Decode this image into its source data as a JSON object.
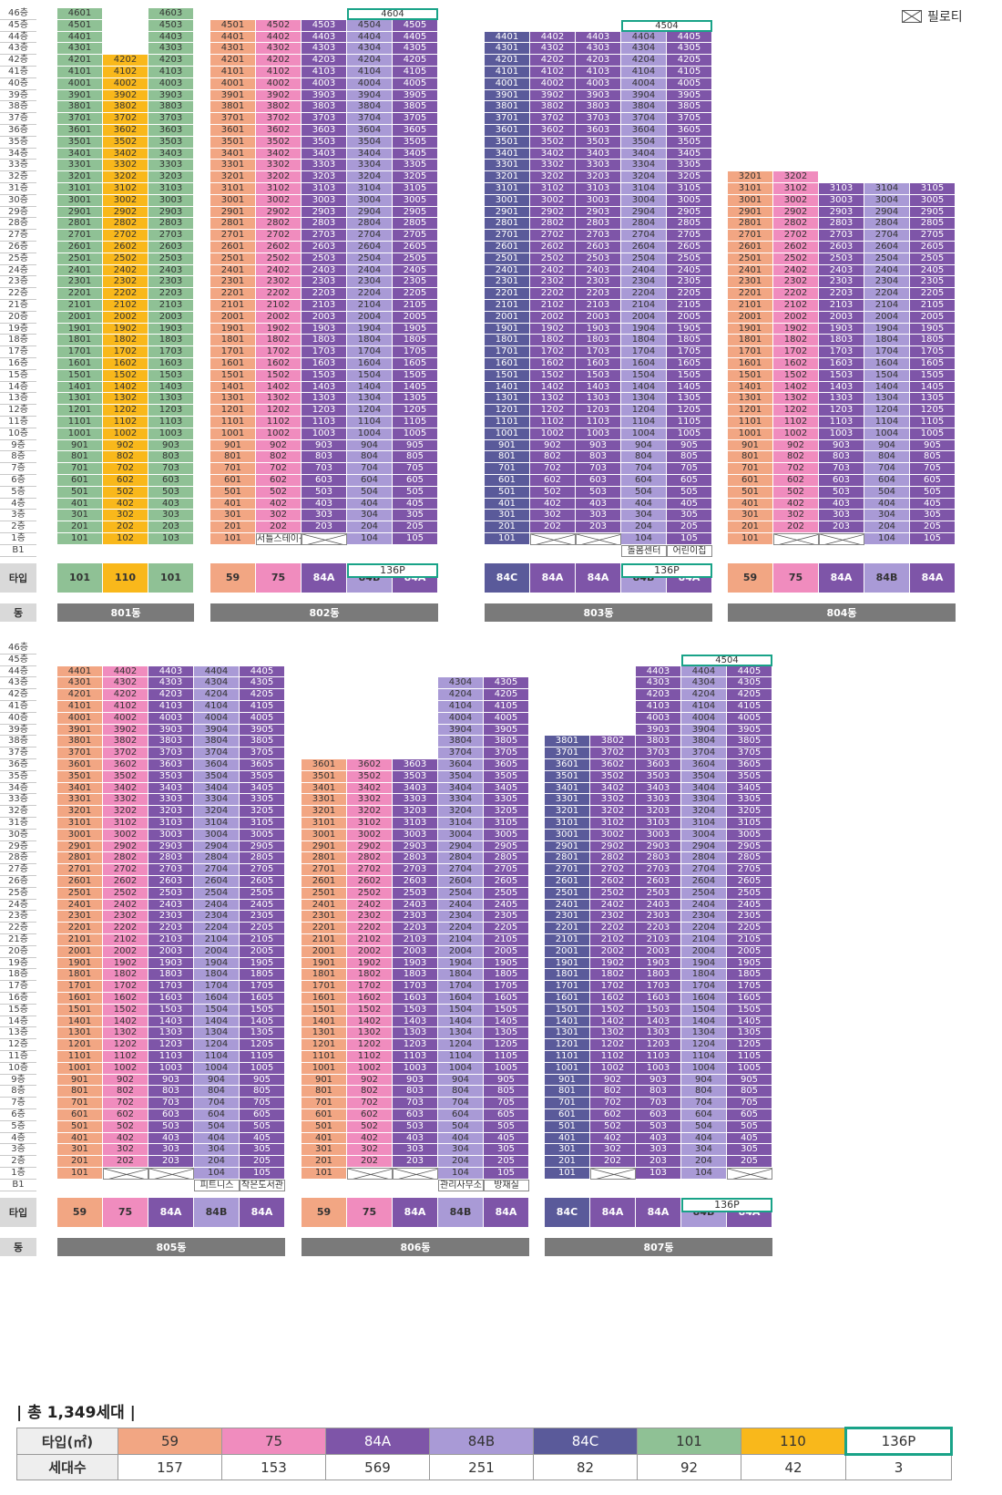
{
  "legend": {
    "pilotis_label": "필로티",
    "icon": "pilotis-x-box-icon"
  },
  "labels": {
    "type_row": "타입",
    "dong_row": "동",
    "basement": "B1",
    "floor_suffix": "층"
  },
  "colors": {
    "59": "#f2a683",
    "75": "#f08cbe",
    "84A": "#7e55a8",
    "84B": "#a99ad6",
    "84C": "#5a5a9a",
    "101": "#8fc195",
    "110": "#f9b81b",
    "136P": "#ffffff",
    "136P_border": "#19a388"
  },
  "buildings": [
    {
      "name": "801동",
      "columns": [
        {
          "line": "01",
          "type": "101",
          "top": 46
        },
        {
          "line": "02",
          "type": "110",
          "top": 42
        },
        {
          "line": "03",
          "type": "101",
          "top": 46
        }
      ],
      "b1_labels": [],
      "special": {},
      "p136": null,
      "type_labels": [
        "101",
        "110",
        "101"
      ]
    },
    {
      "name": "802동",
      "columns": [
        {
          "line": "01",
          "type": "59",
          "top": 45
        },
        {
          "line": "02",
          "type": "75",
          "top": 45
        },
        {
          "line": "03",
          "type": "84A",
          "top": 45
        },
        {
          "line": "04",
          "type": "84B",
          "top": 45
        },
        {
          "line": "05",
          "type": "84A",
          "top": 45
        }
      ],
      "b1_labels": [],
      "special": {
        "1-02": "서틀스테이션",
        "1-03": "X"
      },
      "p136": {
        "label": "4604",
        "type": "136P"
      },
      "type_labels": [
        "59",
        "75",
        "84A",
        "84B",
        "84A"
      ]
    },
    {
      "name": "803동",
      "columns": [
        {
          "line": "01",
          "type": "84C",
          "top": 44
        },
        {
          "line": "02",
          "type": "84A",
          "top": 44
        },
        {
          "line": "03",
          "type": "84A",
          "top": 44
        },
        {
          "line": "04",
          "type": "84B",
          "top": 44
        },
        {
          "line": "05",
          "type": "84A",
          "top": 44
        }
      ],
      "b1_labels": [
        {
          "col": 3,
          "text": "돌봄센터"
        },
        {
          "col": 4,
          "text": "어린이집"
        }
      ],
      "special": {
        "1-02": "X",
        "1-03": "X"
      },
      "p136": {
        "label": "4504",
        "type": "136P"
      },
      "type_labels": [
        "84C",
        "84A",
        "84A",
        "84B",
        "84A"
      ]
    },
    {
      "name": "804동",
      "columns": [
        {
          "line": "01",
          "type": "59",
          "top": 32
        },
        {
          "line": "02",
          "type": "75",
          "top": 32
        },
        {
          "line": "03",
          "type": "84A",
          "top": 31
        },
        {
          "line": "04",
          "type": "84B",
          "top": 31
        },
        {
          "line": "05",
          "type": "84A",
          "top": 31
        }
      ],
      "b1_labels": [],
      "special": {
        "1-02": "X",
        "1-03": "X"
      },
      "p136": null,
      "type_labels": [
        "59",
        "75",
        "84A",
        "84B",
        "84A"
      ]
    },
    {
      "name": "805동",
      "columns": [
        {
          "line": "01",
          "type": "59",
          "top": 44
        },
        {
          "line": "02",
          "type": "75",
          "top": 44
        },
        {
          "line": "03",
          "type": "84A",
          "top": 44
        },
        {
          "line": "04",
          "type": "84B",
          "top": 44
        },
        {
          "line": "05",
          "type": "84A",
          "top": 44
        }
      ],
      "b1_labels": [
        {
          "col": 3,
          "text": "피트니스"
        },
        {
          "col": 4,
          "text": "작은도서관"
        }
      ],
      "special": {
        "1-02": "X",
        "1-03": "X"
      },
      "p136": null,
      "type_labels": [
        "59",
        "75",
        "84A",
        "84B",
        "84A"
      ]
    },
    {
      "name": "806동",
      "columns": [
        {
          "line": "01",
          "type": "59",
          "top": 36
        },
        {
          "line": "02",
          "type": "75",
          "top": 36
        },
        {
          "line": "03",
          "type": "84A",
          "top": 36
        },
        {
          "line": "04",
          "type": "84B",
          "top": 43
        },
        {
          "line": "05",
          "type": "84A",
          "top": 43
        }
      ],
      "b1_labels": [
        {
          "col": 3,
          "text": "관리사무소"
        },
        {
          "col": 4,
          "text": "방재실"
        }
      ],
      "special": {
        "1-02": "X",
        "1-03": "X"
      },
      "p136": null,
      "type_labels": [
        "59",
        "75",
        "84A",
        "84B",
        "84A"
      ]
    },
    {
      "name": "807동",
      "columns": [
        {
          "line": "01",
          "type": "84C",
          "top": 38
        },
        {
          "line": "02",
          "type": "84A",
          "top": 38
        },
        {
          "line": "03",
          "type": "84A",
          "top": 44
        },
        {
          "line": "04",
          "type": "84B",
          "top": 44
        },
        {
          "line": "05",
          "type": "84A",
          "top": 44
        }
      ],
      "b1_labels": [],
      "special": {
        "1-02": "X",
        "1-05": "X"
      },
      "p136": {
        "label": "4504",
        "type": "136P"
      },
      "type_labels": [
        "84C",
        "84A",
        "84A",
        "84B",
        "84A"
      ]
    }
  ],
  "summary": {
    "title": "| 총 1,349세대 |",
    "header_label": "타입(㎡)",
    "count_label": "세대수",
    "types": [
      "59",
      "75",
      "84A",
      "84B",
      "84C",
      "101",
      "110",
      "136P"
    ],
    "counts": [
      "157",
      "153",
      "569",
      "251",
      "82",
      "92",
      "42",
      "3"
    ]
  }
}
